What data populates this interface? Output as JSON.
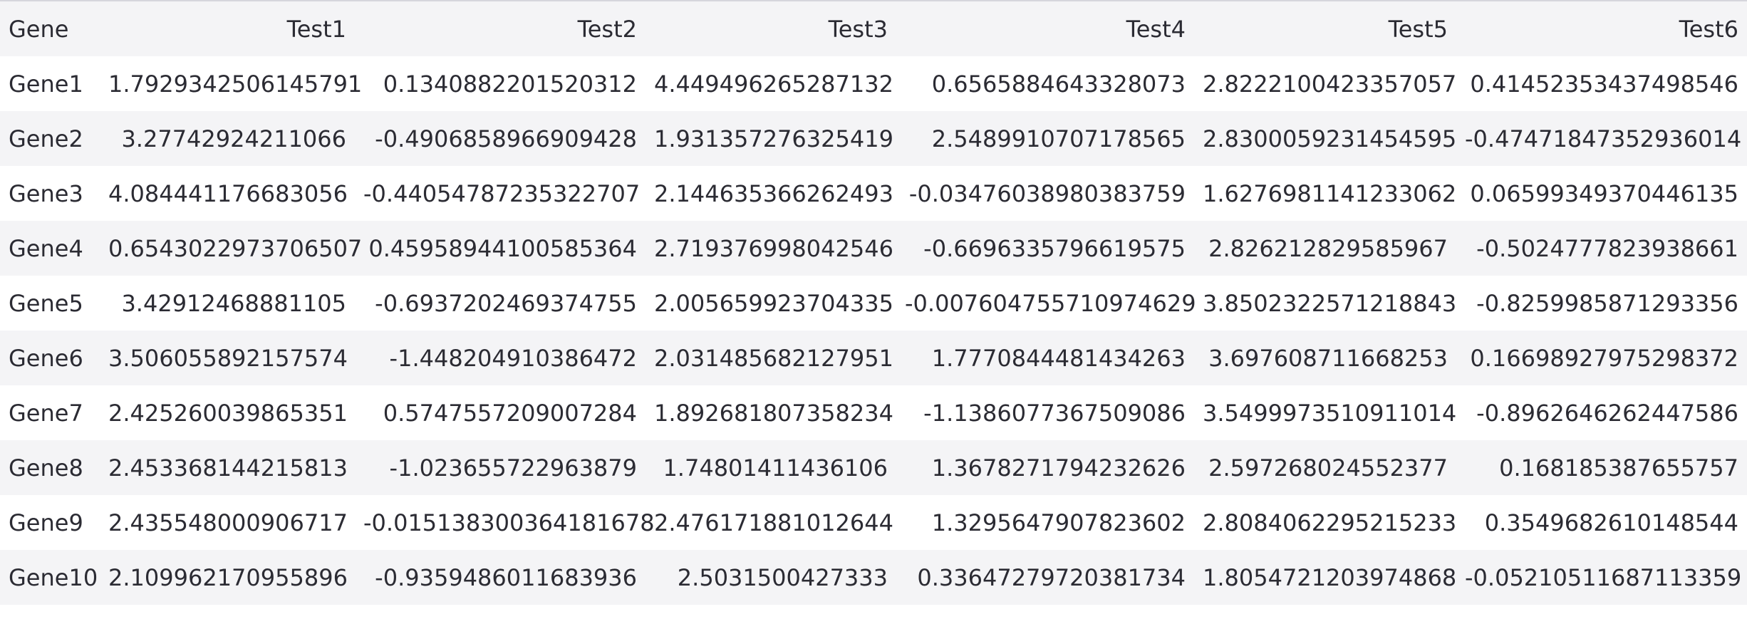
{
  "table": {
    "headers": [
      "Gene",
      "Test1",
      "Test2",
      "Test3",
      "Test4",
      "Test5",
      "Test6"
    ],
    "rows": [
      [
        "Gene1",
        "1.7929342506145791",
        "0.1340882201520312",
        "4.449496265287132",
        "0.6565884643328073",
        "2.8222100423357057",
        "0.41452353437498546"
      ],
      [
        "Gene2",
        "3.27742924211066",
        "-0.4906858966909428",
        "1.931357276325419",
        "2.5489910707178565",
        "2.8300059231454595",
        "-0.47471847352936014"
      ],
      [
        "Gene3",
        "4.084441176683056",
        "-0.44054787235322707",
        "2.144635366262493",
        "-0.03476038980383759",
        "1.6276981141233062",
        "0.06599349370446135"
      ],
      [
        "Gene4",
        "0.6543022973706507",
        "0.45958944100585364",
        "2.719376998042546",
        "-0.6696335796619575",
        "2.826212829585967",
        "-0.5024777823938661"
      ],
      [
        "Gene5",
        "3.42912468881105",
        "-0.6937202469374755",
        "2.005659923704335",
        "-0.007604755710974629",
        "3.8502322571218843",
        "-0.8259985871293356"
      ],
      [
        "Gene6",
        "3.506055892157574",
        "-1.448204910386472",
        "2.031485682127951",
        "1.7770844481434263",
        "3.697608711668253",
        "0.16698927975298372"
      ],
      [
        "Gene7",
        "2.425260039865351",
        "0.5747557209007284",
        "1.892681807358234",
        "-1.1386077367509086",
        "3.5499973510911014",
        "-0.8962646262447586"
      ],
      [
        "Gene8",
        "2.453368144215813",
        "-1.023655722963879",
        "1.74801411436106",
        "1.3678271794232626",
        "2.597268024552377",
        "0.168185387655757"
      ],
      [
        "Gene9",
        "2.435548000906717",
        "-0.015138300364181678",
        "2.476171881012644",
        "1.3295647907823602",
        "2.8084062295215233",
        "0.3549682610148544"
      ],
      [
        "Gene10",
        "2.109962170955896",
        "-0.9359486011683936",
        "2.5031500427333",
        "0.33647279720381734",
        "1.8054721203974868",
        "-0.05210511687113359"
      ]
    ]
  }
}
